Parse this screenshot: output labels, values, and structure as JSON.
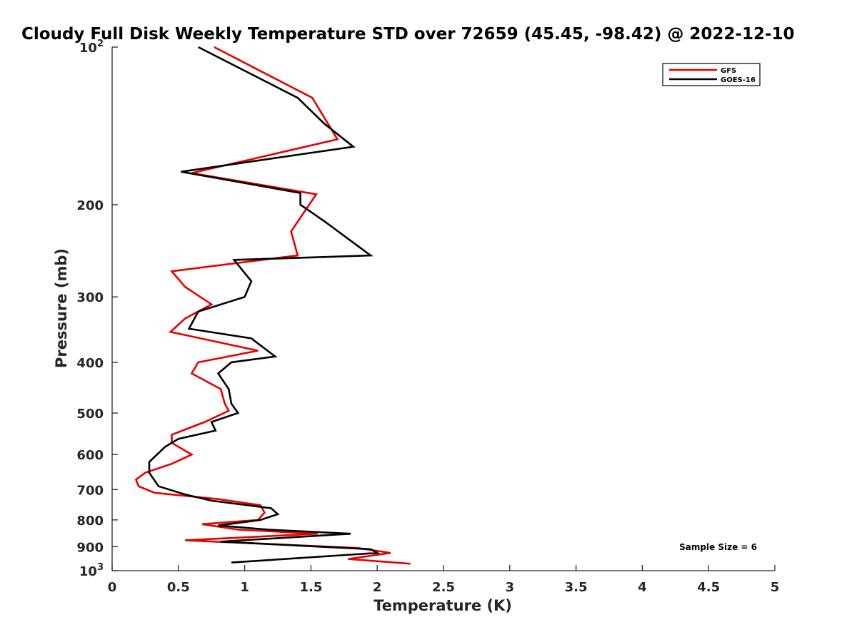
{
  "chart_data": {
    "type": "line",
    "title": "Cloudy Full Disk Weekly Temperature STD over 72659 (45.45, -98.42) @ 2022-12-10",
    "xlabel": "Temperature (K)",
    "ylabel": "Pressure (mb)",
    "xlim": [
      0,
      5
    ],
    "ylim": [
      1000,
      100
    ],
    "y_scale": "log",
    "y_reversed": true,
    "grid": false,
    "legend_position": "top-right",
    "x_ticks": [
      "0",
      "0.5",
      "1",
      "1.5",
      "2",
      "2.5",
      "3",
      "3.5",
      "4",
      "4.5",
      "5"
    ],
    "y_ticks": [
      {
        "value": 100,
        "base": "10",
        "exp": "2"
      },
      {
        "value": 200,
        "label": "200"
      },
      {
        "value": 300,
        "label": "300"
      },
      {
        "value": 400,
        "label": "400"
      },
      {
        "value": 500,
        "label": "500"
      },
      {
        "value": 600,
        "label": "600"
      },
      {
        "value": 700,
        "label": "700"
      },
      {
        "value": 800,
        "label": "800"
      },
      {
        "value": 900,
        "label": "900"
      },
      {
        "value": 1000,
        "base": "10",
        "exp": "3"
      }
    ],
    "annotation": "Sample Size = 6",
    "series": [
      {
        "name": "GFS",
        "color": "#e60000",
        "points": [
          [
            0.77,
            100
          ],
          [
            1.51,
            125
          ],
          [
            1.7,
            150
          ],
          [
            0.6,
            174
          ],
          [
            1.54,
            191
          ],
          [
            1.35,
            225
          ],
          [
            1.4,
            250
          ],
          [
            0.45,
            268
          ],
          [
            0.55,
            287
          ],
          [
            0.75,
            310
          ],
          [
            0.55,
            330
          ],
          [
            0.44,
            350
          ],
          [
            1.1,
            380
          ],
          [
            0.65,
            400
          ],
          [
            0.6,
            420
          ],
          [
            0.82,
            450
          ],
          [
            0.85,
            480
          ],
          [
            0.88,
            495
          ],
          [
            0.7,
            520
          ],
          [
            0.45,
            550
          ],
          [
            0.45,
            570
          ],
          [
            0.6,
            600
          ],
          [
            0.45,
            625
          ],
          [
            0.25,
            650
          ],
          [
            0.18,
            670
          ],
          [
            0.2,
            690
          ],
          [
            0.32,
            710
          ],
          [
            0.8,
            730
          ],
          [
            1.12,
            750
          ],
          [
            1.15,
            775
          ],
          [
            1.1,
            800
          ],
          [
            0.68,
            815
          ],
          [
            0.95,
            835
          ],
          [
            1.55,
            850
          ],
          [
            0.55,
            875
          ],
          [
            1.85,
            905
          ],
          [
            2.1,
            925
          ],
          [
            1.78,
            950
          ],
          [
            2.25,
            970
          ]
        ]
      },
      {
        "name": "GOES-16",
        "color": "#000000",
        "points": [
          [
            0.65,
            100
          ],
          [
            1.4,
            125
          ],
          [
            1.6,
            140
          ],
          [
            1.82,
            155
          ],
          [
            0.52,
            173
          ],
          [
            1.42,
            190
          ],
          [
            1.42,
            200
          ],
          [
            1.6,
            215
          ],
          [
            1.95,
            250
          ],
          [
            0.92,
            255
          ],
          [
            1.05,
            280
          ],
          [
            1.0,
            300
          ],
          [
            0.65,
            320
          ],
          [
            0.58,
            345
          ],
          [
            1.05,
            360
          ],
          [
            1.23,
            390
          ],
          [
            0.9,
            400
          ],
          [
            0.8,
            420
          ],
          [
            0.88,
            450
          ],
          [
            0.9,
            480
          ],
          [
            0.95,
            500
          ],
          [
            0.75,
            520
          ],
          [
            0.78,
            540
          ],
          [
            0.5,
            560
          ],
          [
            0.4,
            580
          ],
          [
            0.28,
            620
          ],
          [
            0.28,
            650
          ],
          [
            0.35,
            690
          ],
          [
            0.55,
            715
          ],
          [
            0.75,
            735
          ],
          [
            1.2,
            760
          ],
          [
            1.25,
            780
          ],
          [
            1.12,
            800
          ],
          [
            0.8,
            820
          ],
          [
            1.18,
            835
          ],
          [
            1.8,
            850
          ],
          [
            0.82,
            880
          ],
          [
            1.95,
            910
          ],
          [
            2.0,
            925
          ],
          [
            0.9,
            965
          ]
        ]
      }
    ]
  }
}
